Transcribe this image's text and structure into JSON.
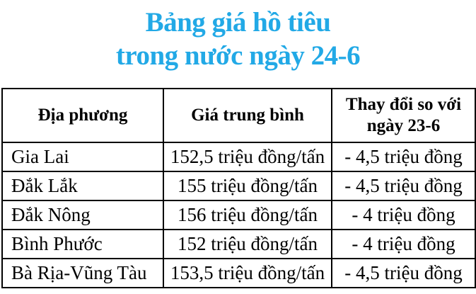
{
  "title": {
    "line1": "Bảng giá hồ tiêu",
    "line2": "trong nước ngày 24-6",
    "color": "#22A9E6"
  },
  "table": {
    "columns": [
      "Địa phương",
      "Giá trung bình",
      "Thay đổi so với ngày 23-6"
    ],
    "rows": [
      {
        "location": "Gia Lai",
        "price": "152,5 triệu đồng/tấn",
        "change": "- 4,5 triệu đồng"
      },
      {
        "location": "Đắk Lắk",
        "price": "155 triệu đồng/tấn",
        "change": "- 4,5 triệu đồng"
      },
      {
        "location": "Đắk Nông",
        "price": "156 triệu đồng/tấn",
        "change": "- 4 triệu đồng"
      },
      {
        "location": "Bình Phước",
        "price": "152 triệu đồng/tấn",
        "change": "- 4 triệu đồng"
      },
      {
        "location": "Bà Rịa-Vũng Tàu",
        "price": "153,5 triệu đồng/tấn",
        "change": "- 4,5 triệu đồng"
      }
    ]
  },
  "chart_data": {
    "type": "table",
    "title": "Bảng giá hồ tiêu trong nước ngày 24-6",
    "columns": [
      "Địa phương",
      "Giá trung bình",
      "Thay đổi so với ngày 23-6"
    ],
    "categories": [
      "Gia Lai",
      "Đắk Lắk",
      "Đắk Nông",
      "Bình Phước",
      "Bà Rịa-Vũng Tàu"
    ],
    "series": [
      {
        "name": "Giá trung bình (triệu đồng/tấn)",
        "values": [
          152.5,
          155,
          156,
          152,
          153.5
        ]
      },
      {
        "name": "Thay đổi so với ngày 23-6 (triệu đồng)",
        "values": [
          -4.5,
          -4.5,
          -4,
          -4,
          -4.5
        ]
      }
    ]
  }
}
